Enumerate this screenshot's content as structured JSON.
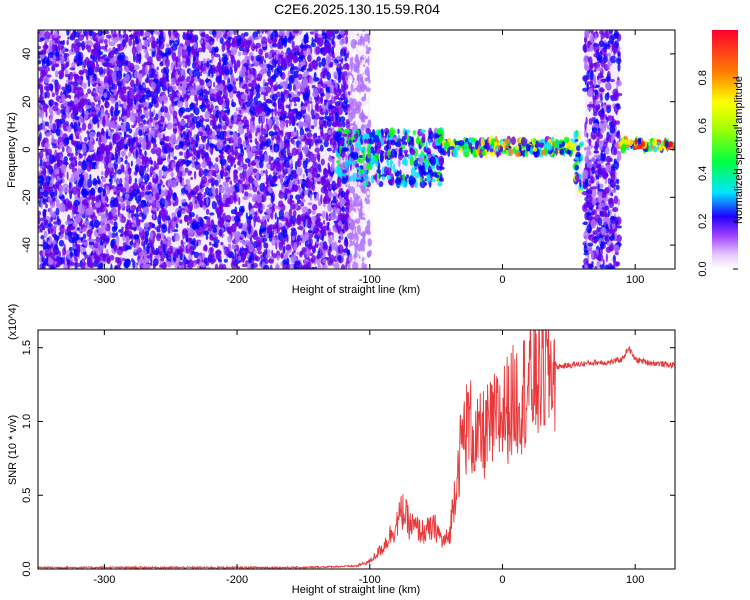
{
  "figure_title": "C2E6.2025.130.15.59.R04",
  "chart_data": [
    {
      "type": "heatmap",
      "title": "",
      "xlabel": "Height of straight line (km)",
      "ylabel": "Frequency (Hz)",
      "xlim": [
        -350,
        130
      ],
      "ylim": [
        -50,
        50
      ],
      "x_ticks": [
        "-300",
        "-200",
        "-100",
        "0",
        "100"
      ],
      "x_tick_values": [
        -300,
        -200,
        -100,
        0,
        100
      ],
      "y_ticks": [
        "-40",
        "-20",
        "0",
        "20",
        "40"
      ],
      "y_tick_values": [
        -40,
        -20,
        0,
        20,
        40
      ],
      "colorbar": {
        "label": "Normalized spectral amplitude",
        "range": [
          0,
          1
        ],
        "ticks": [
          "0.0",
          "0.2",
          "0.4",
          "0.6",
          "0.8"
        ],
        "tick_values": [
          0.0,
          0.2,
          0.4,
          0.6,
          0.8
        ],
        "colormap": [
          "#ffffff",
          "#b070ff",
          "#6a00e8",
          "#0000ff",
          "#00e5ff",
          "#00ff00",
          "#ffff00",
          "#ff8000",
          "#ff0000"
        ]
      },
      "regions": [
        {
          "x": [
            -350,
            -115
          ],
          "freq": [
            -50,
            50
          ],
          "amplitude": 0.3
        },
        {
          "x": [
            -115,
            -100
          ],
          "freq": [
            -50,
            50
          ],
          "amplitude": 0.1
        },
        {
          "x": [
            -125,
            -45
          ],
          "freq": [
            -15,
            8
          ],
          "amplitude": 0.5
        },
        {
          "x": [
            -45,
            55
          ],
          "freq": [
            -2,
            4
          ],
          "amplitude": 0.7
        },
        {
          "x": [
            55,
            60
          ],
          "freq": [
            -20,
            8
          ],
          "amplitude": 0.6
        },
        {
          "x": [
            62,
            88
          ],
          "freq": [
            -50,
            50
          ],
          "amplitude": 0.3
        },
        {
          "x": [
            88,
            130
          ],
          "freq": [
            0,
            4
          ],
          "amplitude": 0.9
        }
      ]
    },
    {
      "type": "line",
      "title": "",
      "xlabel": "Height of straight line (km)",
      "ylabel": "SNR (10 * v/v)",
      "y_multiplier": "(x10^4)",
      "xlim": [
        -350,
        130
      ],
      "ylim": [
        0,
        1.62
      ],
      "x_ticks": [
        "-300",
        "-200",
        "-100",
        "0",
        "100"
      ],
      "x_tick_values": [
        -300,
        -200,
        -100,
        0,
        100
      ],
      "y_ticks": [
        "0.0",
        "0.5",
        "1.0",
        "1.5"
      ],
      "y_tick_values": [
        0.0,
        0.5,
        1.0,
        1.5
      ],
      "series": [
        {
          "color": "#e8383a",
          "x": [
            -350,
            -150,
            -110,
            -100,
            -90,
            -80,
            -75,
            -70,
            -60,
            -50,
            -45,
            -40,
            -35,
            -30,
            -25,
            -20,
            -10,
            0,
            10,
            20,
            30,
            40,
            50,
            60,
            70,
            80,
            90,
            95,
            100,
            110,
            120,
            130
          ],
          "y": [
            0.01,
            0.01,
            0.02,
            0.05,
            0.15,
            0.3,
            0.4,
            0.3,
            0.25,
            0.28,
            0.18,
            0.22,
            0.6,
            0.9,
            1.0,
            0.85,
            0.95,
            1.05,
            1.15,
            1.25,
            1.33,
            1.37,
            1.38,
            1.39,
            1.4,
            1.4,
            1.42,
            1.5,
            1.42,
            1.4,
            1.39,
            1.38
          ]
        }
      ]
    }
  ]
}
